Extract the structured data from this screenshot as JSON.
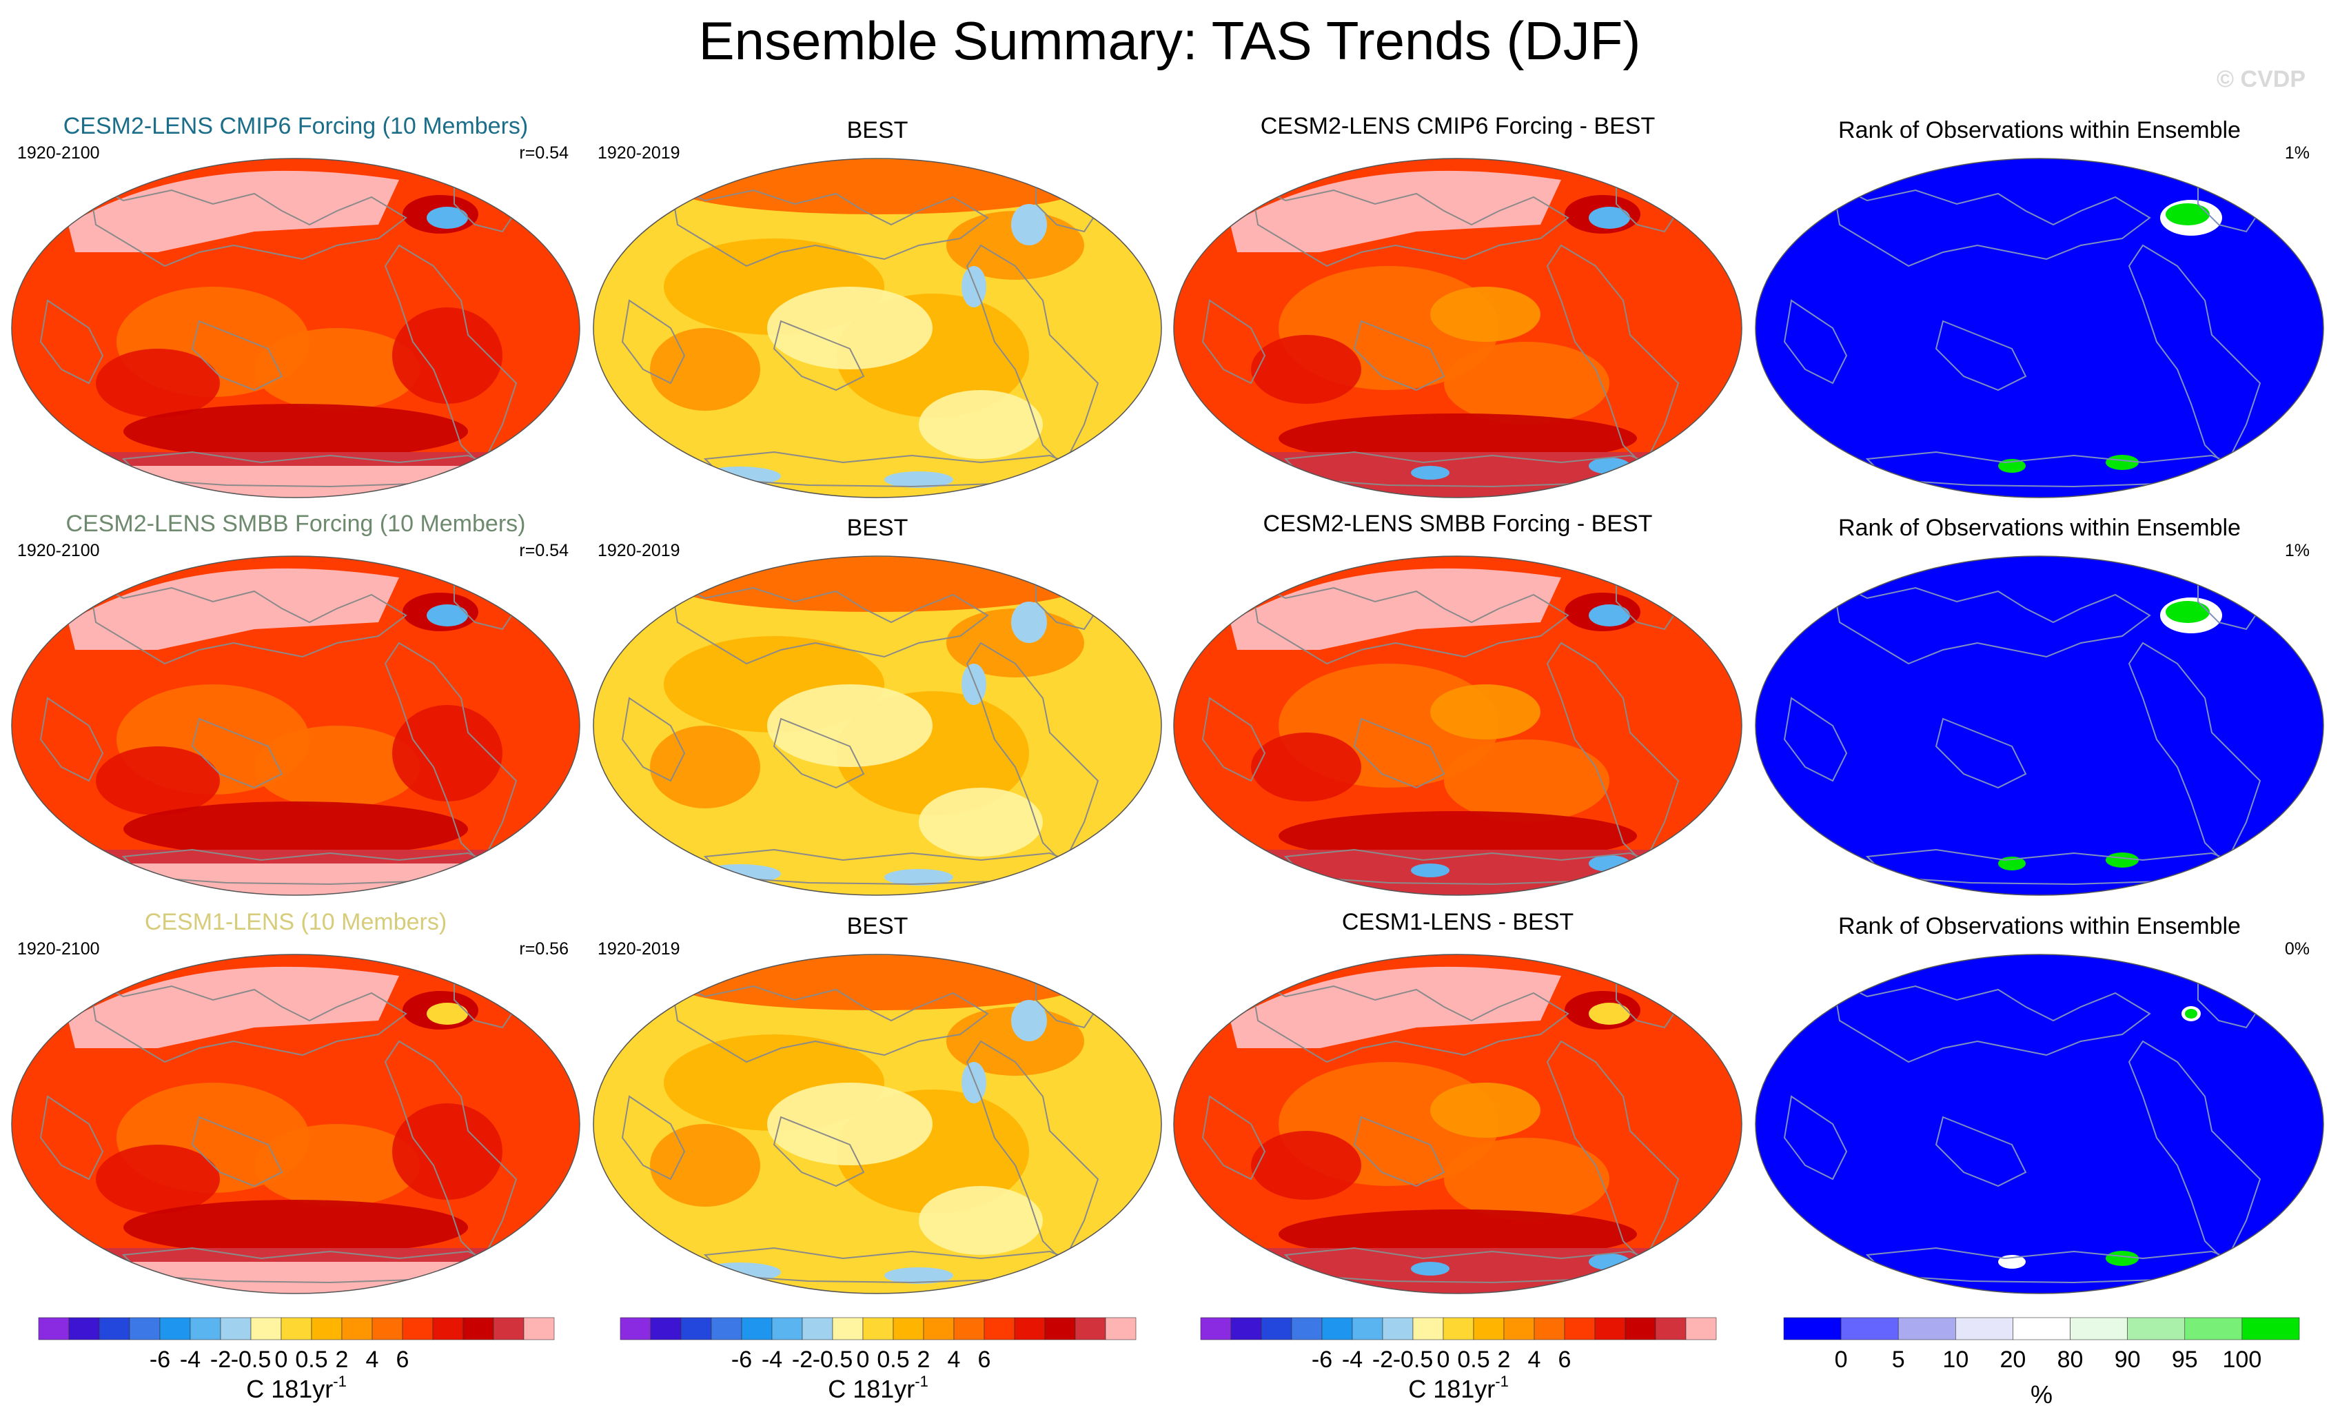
{
  "chart_data": {
    "type": "heatmap",
    "title": "Ensemble Summary: TAS Trends (DJF)",
    "watermark": "© CVDP",
    "rows": [
      {
        "model_title": "CESM2-LENS CMIP6 Forcing (10 Members)",
        "model_title_color": "#1a6e8a",
        "model_period": "1920-2100",
        "pattern_corr": "r=0.54",
        "obs_title": "BEST",
        "obs_period": "1920-2019",
        "diff_title": "CESM2-LENS CMIP6 Forcing - BEST",
        "rank_title": "Rank of Observations within Ensemble",
        "rank_pct": "1%"
      },
      {
        "model_title": "CESM2-LENS SMBB Forcing (10 Members)",
        "model_title_color": "#6e8a6e",
        "model_period": "1920-2100",
        "pattern_corr": "r=0.54",
        "obs_title": "BEST",
        "obs_period": "1920-2019",
        "diff_title": "CESM2-LENS SMBB Forcing - BEST",
        "rank_title": "Rank of Observations within Ensemble",
        "rank_pct": "1%"
      },
      {
        "model_title": "CESM1-LENS (10 Members)",
        "model_title_color": "#d6cc7a",
        "model_period": "1920-2100",
        "pattern_corr": "r=0.56",
        "obs_title": "BEST",
        "obs_period": "1920-2019",
        "diff_title": "CESM1-LENS - BEST",
        "rank_title": "Rank of Observations within Ensemble",
        "rank_pct": "0%"
      }
    ],
    "trend_colorbar": {
      "ticks": [
        "-6",
        "-4",
        "-2",
        "-0.5",
        "0",
        "0.5",
        "2",
        "4",
        "6"
      ],
      "unit": "C 181yr",
      "unit_exp": "-1",
      "colors": [
        "#8a2be2",
        "#3c14d2",
        "#2346dc",
        "#3c78e6",
        "#1e96f0",
        "#5ab4f0",
        "#a0d2f0",
        "#fff5a0",
        "#ffd732",
        "#ffb400",
        "#ff9600",
        "#ff6e00",
        "#ff3c00",
        "#e61400",
        "#c80000",
        "#d2323c",
        "#ffb4b4"
      ]
    },
    "rank_colorbar": {
      "ticks": [
        "0",
        "5",
        "10",
        "20",
        "80",
        "90",
        "95",
        "100"
      ],
      "unit": "%",
      "colors": [
        "#0000ff",
        "#6464ff",
        "#aaaaf0",
        "#e6e6fa",
        "#ffffff",
        "#e6fae6",
        "#aaf0aa",
        "#78f078",
        "#00e600"
      ]
    }
  }
}
